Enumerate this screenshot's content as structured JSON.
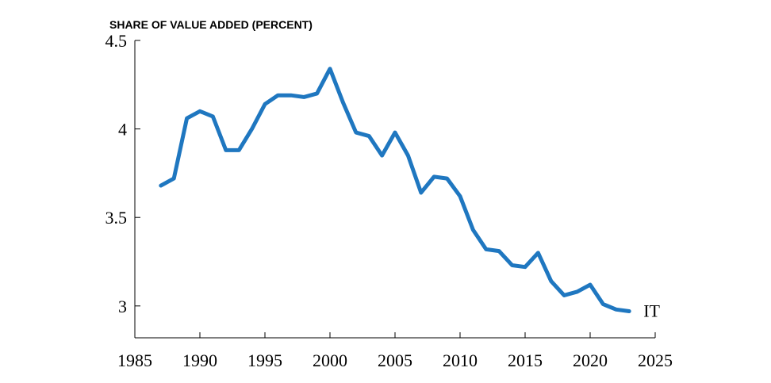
{
  "chart_data": {
    "type": "line",
    "title": "",
    "ylabel": "SHARE OF VALUE ADDED (PERCENT)",
    "xlabel": "",
    "xlim": [
      1985,
      2025
    ],
    "ylim": [
      2.82,
      4.5
    ],
    "x_ticks": [
      "1985",
      "1990",
      "1995",
      "2000",
      "2005",
      "2010",
      "2015",
      "2020",
      "2025"
    ],
    "y_ticks": [
      "3",
      "3.5",
      "4",
      "4.5"
    ],
    "grid": false,
    "colors": {
      "series": "#1f77c0",
      "axis": "#000000"
    },
    "series": [
      {
        "name": "IT",
        "x": [
          1987,
          1988,
          1989,
          1990,
          1991,
          1992,
          1993,
          1994,
          1995,
          1996,
          1997,
          1998,
          1999,
          2000,
          2001,
          2002,
          2003,
          2004,
          2005,
          2006,
          2007,
          2008,
          2009,
          2010,
          2011,
          2012,
          2013,
          2014,
          2015,
          2016,
          2017,
          2018,
          2019,
          2020,
          2021,
          2022,
          2023
        ],
        "values": [
          3.68,
          3.72,
          4.06,
          4.1,
          4.07,
          3.88,
          3.88,
          4.0,
          4.14,
          4.19,
          4.19,
          4.18,
          4.2,
          4.34,
          4.15,
          3.98,
          3.96,
          3.85,
          3.98,
          3.85,
          3.64,
          3.73,
          3.72,
          3.62,
          3.43,
          3.32,
          3.31,
          3.23,
          3.22,
          3.3,
          3.14,
          3.06,
          3.08,
          3.12,
          3.01,
          2.98,
          2.97
        ]
      }
    ]
  }
}
